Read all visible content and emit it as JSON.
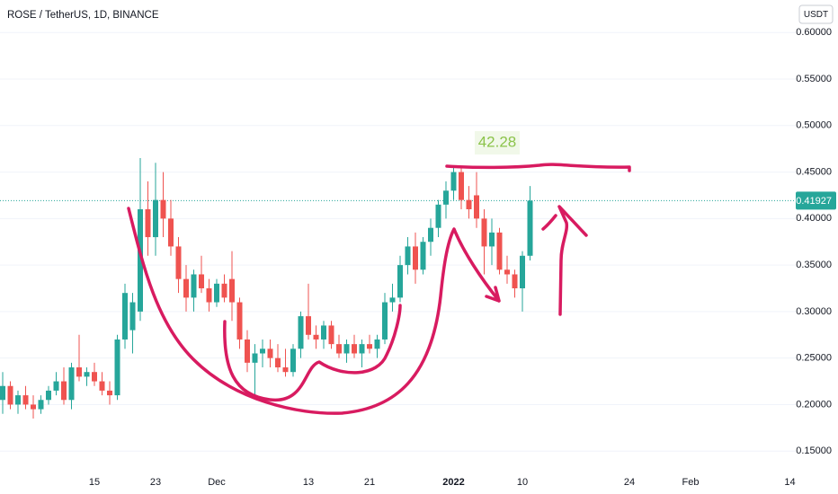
{
  "chart_data": {
    "type": "candlestick",
    "title": "ROSE / TetherUS, 1D, BINANCE",
    "currency": "USDT",
    "annotation": "42.28",
    "categories": [
      null,
      null,
      null,
      null,
      null,
      null,
      null,
      null,
      null,
      null,
      null,
      null,
      "15",
      null,
      null,
      null,
      null,
      null,
      null,
      null,
      "23",
      null,
      null,
      null,
      null,
      null,
      null,
      null,
      "Dec",
      null,
      null,
      null,
      null,
      null,
      null,
      null,
      null,
      null,
      null,
      null,
      "13",
      null,
      null,
      null,
      null,
      null,
      null,
      null,
      "21",
      null,
      null,
      null,
      null,
      null,
      null,
      null,
      null,
      null,
      null,
      "2022",
      null,
      null,
      null,
      null,
      null,
      null,
      null,
      null,
      "10",
      null,
      null,
      null,
      null,
      null,
      null,
      null,
      null,
      null,
      null,
      null,
      null,
      null,
      "24",
      null,
      null,
      null,
      null,
      null,
      null,
      null,
      "Feb",
      null,
      null,
      null,
      null,
      null,
      null,
      null,
      null,
      null,
      null,
      null,
      null,
      "14"
    ],
    "open": [
      0.205,
      0.22,
      0.2,
      0.21,
      0.2,
      0.195,
      0.205,
      0.215,
      0.225,
      0.205,
      0.24,
      0.23,
      0.235,
      0.225,
      0.215,
      0.21,
      0.27,
      0.28,
      0.3,
      0.41,
      0.38,
      0.42,
      0.4,
      0.37,
      0.335,
      0.315,
      0.34,
      0.325,
      0.31,
      0.33,
      0.335,
      0.31,
      0.27,
      0.245,
      0.255,
      0.26,
      0.25,
      0.24,
      0.235,
      0.26,
      0.295,
      0.275,
      0.27,
      0.285,
      0.265,
      0.255,
      0.265,
      0.255,
      0.265,
      0.26,
      0.27,
      0.31,
      0.315,
      0.35,
      0.37,
      0.345,
      0.375,
      0.39,
      0.415,
      0.43,
      0.45,
      0.42,
      0.425,
      0.4,
      0.37,
      0.385,
      0.345,
      0.34,
      0.325,
      0.36,
      null,
      null,
      null,
      null,
      null,
      null,
      null,
      null,
      null,
      null,
      null,
      null,
      null,
      null,
      null,
      null,
      null,
      null,
      null,
      null,
      null,
      null,
      null,
      null,
      null,
      null,
      null,
      null,
      null,
      null,
      null,
      null,
      null,
      null
    ],
    "high": [
      0.235,
      0.225,
      0.215,
      0.22,
      0.21,
      0.21,
      0.22,
      0.235,
      0.24,
      0.245,
      0.275,
      0.24,
      0.245,
      0.235,
      0.225,
      0.275,
      0.33,
      0.32,
      0.465,
      0.44,
      0.46,
      0.45,
      0.42,
      0.38,
      0.35,
      0.345,
      0.36,
      0.335,
      0.335,
      0.34,
      0.365,
      0.315,
      0.28,
      0.265,
      0.27,
      0.27,
      0.265,
      0.26,
      0.265,
      0.3,
      0.33,
      0.285,
      0.29,
      0.29,
      0.275,
      0.27,
      0.275,
      0.27,
      0.275,
      0.275,
      0.32,
      0.33,
      0.36,
      0.38,
      0.385,
      0.38,
      0.4,
      0.42,
      0.44,
      0.455,
      0.455,
      0.435,
      0.45,
      0.41,
      0.4,
      0.39,
      0.36,
      0.345,
      0.365,
      0.435,
      null,
      null,
      null,
      null,
      null,
      null,
      null,
      null,
      null,
      null,
      null,
      null,
      null,
      null,
      null,
      null,
      null,
      null,
      null,
      null,
      null,
      null,
      null,
      null,
      null,
      null,
      null,
      null,
      null,
      null,
      null,
      null,
      null,
      null
    ],
    "low": [
      0.19,
      0.195,
      0.19,
      0.195,
      0.185,
      0.19,
      0.2,
      0.21,
      0.2,
      0.195,
      0.225,
      0.22,
      0.22,
      0.21,
      0.2,
      0.205,
      0.26,
      0.255,
      0.29,
      0.36,
      0.36,
      0.38,
      0.36,
      0.32,
      0.3,
      0.3,
      0.32,
      0.3,
      0.305,
      0.31,
      0.29,
      0.26,
      0.235,
      0.21,
      0.24,
      0.24,
      0.235,
      0.23,
      0.23,
      0.25,
      0.27,
      0.26,
      0.26,
      0.26,
      0.25,
      0.245,
      0.25,
      0.24,
      0.255,
      0.25,
      0.265,
      0.3,
      0.31,
      0.34,
      0.33,
      0.34,
      0.36,
      0.38,
      0.4,
      0.42,
      0.41,
      0.4,
      0.39,
      0.34,
      0.35,
      0.34,
      0.33,
      0.315,
      0.3,
      0.355,
      null,
      null,
      null,
      null,
      null,
      null,
      null,
      null,
      null,
      null,
      null,
      null,
      null,
      null,
      null,
      null,
      null,
      null,
      null,
      null,
      null,
      null,
      null,
      null,
      null,
      null,
      null,
      null,
      null,
      null,
      null,
      null,
      null,
      null
    ],
    "close": [
      0.22,
      0.2,
      0.21,
      0.2,
      0.195,
      0.205,
      0.215,
      0.225,
      0.205,
      0.24,
      0.23,
      0.235,
      0.225,
      0.215,
      0.21,
      0.27,
      0.32,
      0.31,
      0.41,
      0.38,
      0.42,
      0.4,
      0.37,
      0.335,
      0.315,
      0.34,
      0.325,
      0.31,
      0.33,
      0.315,
      0.31,
      0.27,
      0.245,
      0.255,
      0.26,
      0.25,
      0.24,
      0.235,
      0.26,
      0.295,
      0.275,
      0.27,
      0.285,
      0.265,
      0.255,
      0.265,
      0.255,
      0.265,
      0.26,
      0.27,
      0.31,
      0.315,
      0.35,
      0.37,
      0.345,
      0.375,
      0.39,
      0.415,
      0.43,
      0.45,
      0.42,
      0.41,
      0.4,
      0.37,
      0.385,
      0.345,
      0.34,
      0.325,
      0.36,
      0.41927,
      null,
      null,
      null,
      null,
      null,
      null,
      null,
      null,
      null,
      null,
      null,
      null,
      null,
      null,
      null,
      null,
      null,
      null,
      null,
      null,
      null,
      null,
      null,
      null,
      null,
      null,
      null,
      null,
      null,
      null,
      null,
      null,
      null,
      null
    ],
    "last_price": 0.41927,
    "up_color": "#26a69a",
    "down_color": "#ef5350",
    "ylim": [
      0.128,
      0.635
    ],
    "yticks": [
      {
        "value": 0.15,
        "label": "0.15000"
      },
      {
        "value": 0.2,
        "label": "0.20000"
      },
      {
        "value": 0.25,
        "label": "0.25000"
      },
      {
        "value": 0.3,
        "label": "0.30000"
      },
      {
        "value": 0.35,
        "label": "0.35000"
      },
      {
        "value": 0.4,
        "label": "0.40000"
      },
      {
        "value": 0.45,
        "label": "0.45000"
      },
      {
        "value": 0.5,
        "label": "0.50000"
      },
      {
        "value": 0.55,
        "label": "0.55000"
      },
      {
        "value": 0.6,
        "label": "0.60000"
      }
    ],
    "grid": true
  }
}
